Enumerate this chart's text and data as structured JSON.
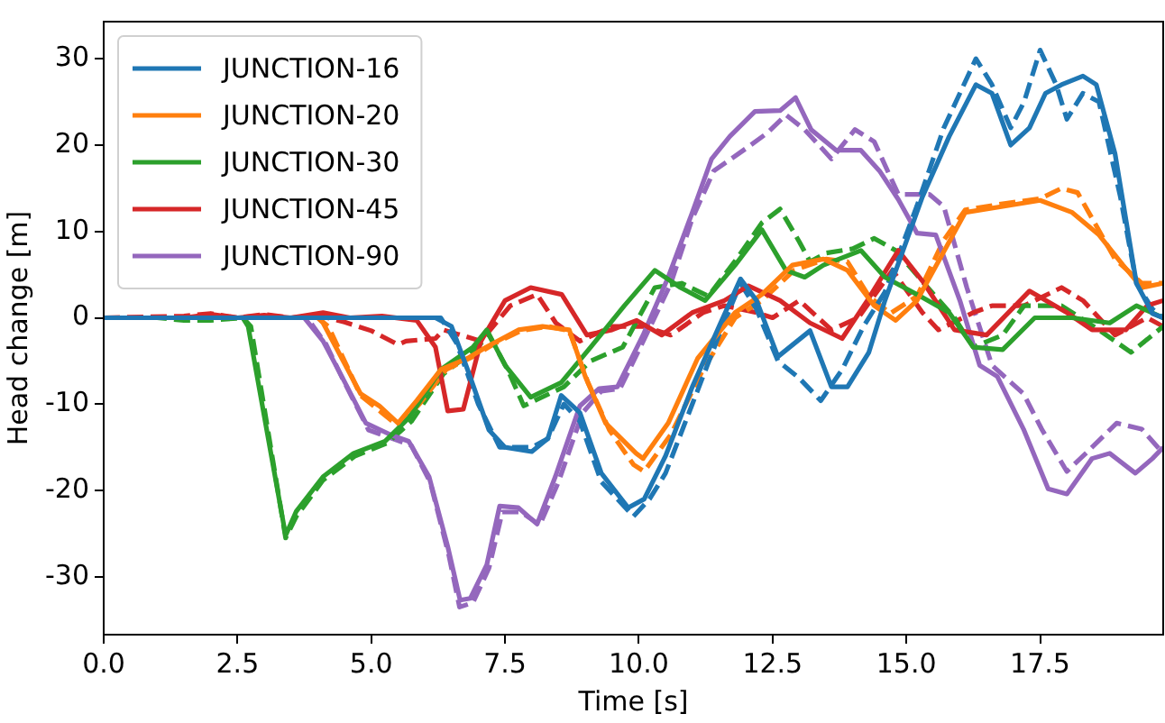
{
  "chart_data": {
    "type": "line",
    "xlabel": "Time [s]",
    "ylabel": "Head change [m]",
    "xlim": [
      0,
      19.8
    ],
    "ylim": [
      -36.7,
      34.3
    ],
    "xticks": [
      {
        "value": 0,
        "label": "0.0"
      },
      2.5,
      {
        "value": 5,
        "label": "5.0"
      },
      7.5,
      {
        "value": 10,
        "label": "10.0"
      },
      12.5,
      {
        "value": 15,
        "label": "15.0"
      },
      17.5
    ],
    "yticks": [
      -30,
      -20,
      -10,
      0,
      10,
      20,
      30
    ],
    "grid": false,
    "legend": "top left",
    "marker": "none",
    "line_style": "solid",
    "series": [
      {
        "name": "JUNCTION-16",
        "color": "#1f77b4",
        "x": [
          0,
          6.2,
          6.5,
          6.8,
          7.2,
          7.5,
          8.0,
          8.3,
          8.55,
          8.9,
          9.3,
          9.8,
          10.1,
          10.5,
          11,
          11.5,
          11.9,
          12.2,
          12.6,
          13.2,
          13.6,
          13.9,
          14.3,
          14.6,
          15.3,
          15.8,
          16.3,
          16.6,
          16.95,
          17.3,
          17.6,
          17.9,
          18.3,
          18.55,
          18.9,
          19.3,
          19.6,
          19.8
        ],
        "values": [
          0,
          0,
          -1,
          -6,
          -13,
          -15,
          -15.5,
          -14,
          -9,
          -11,
          -18,
          -22,
          -21,
          -16,
          -8,
          -1,
          4.5,
          2,
          -4.5,
          -1.5,
          -8,
          -8,
          -4,
          2,
          14,
          21,
          27,
          26,
          20,
          22,
          26,
          27,
          28,
          27,
          19,
          4,
          0.5,
          0
        ]
      },
      {
        "name": "JUNCTION-20",
        "color": "#ff7f0e",
        "x": [
          0,
          4.0,
          4.1,
          4.8,
          5.15,
          5.5,
          5.85,
          6.3,
          6.8,
          7.15,
          7.75,
          8.2,
          8.7,
          9.0,
          9.38,
          9.95,
          10.08,
          10.55,
          11.1,
          11.8,
          12.3,
          12.87,
          13.45,
          13.9,
          14.4,
          14.8,
          15.2,
          15.8,
          16.1,
          16.8,
          17.5,
          18.1,
          18.6,
          19.05,
          19.4,
          19.8
        ],
        "values": [
          0,
          0,
          -0.6,
          -8.8,
          -10.2,
          -12.2,
          -9.6,
          -6,
          -4.7,
          -3.4,
          -1.4,
          -1,
          -1.4,
          -6.8,
          -12.2,
          -15.7,
          -16.3,
          -12.2,
          -4.7,
          0.6,
          2.7,
          6.1,
          6.8,
          5.5,
          1.4,
          -0.3,
          2,
          8.8,
          12.2,
          12.9,
          13.6,
          12.2,
          9.6,
          6.1,
          3.5,
          4
        ]
      },
      {
        "name": "JUNCTION-30",
        "color": "#2ca02c",
        "x": [
          0,
          2.6,
          2.7,
          3.4,
          3.6,
          4.1,
          4.67,
          5.26,
          5.7,
          6.3,
          6.9,
          7.16,
          7.5,
          7.98,
          8.55,
          9.1,
          9.73,
          10.3,
          10.78,
          11.24,
          11.8,
          12.3,
          12.75,
          13.1,
          13.45,
          14.15,
          14.6,
          15.2,
          15.8,
          16.25,
          16.8,
          17.4,
          18.1,
          18.8,
          19.3,
          19.8
        ],
        "values": [
          0,
          0,
          -1,
          -25.2,
          -22.4,
          -18.4,
          -15.7,
          -14.3,
          -11.6,
          -6,
          -3.4,
          -1.4,
          -5.5,
          -9.2,
          -7.5,
          -3.4,
          1.4,
          5.5,
          3.5,
          2,
          6.1,
          10.2,
          5.5,
          4.7,
          6.1,
          7.8,
          4.7,
          2.7,
          0.6,
          -3.4,
          -3.7,
          0,
          0,
          -0.6,
          1.4,
          0
        ]
      },
      {
        "name": "JUNCTION-45",
        "color": "#d62728",
        "x": [
          0,
          1.5,
          2.0,
          2.5,
          3.0,
          3.5,
          4.1,
          4.6,
          5.2,
          5.85,
          6.2,
          6.43,
          6.72,
          7.05,
          7.5,
          7.98,
          8.56,
          9.03,
          9.5,
          9.96,
          10.43,
          11.0,
          11.6,
          12.05,
          12.64,
          13.2,
          13.8,
          14.27,
          14.85,
          15.32,
          15.9,
          16.5,
          17.3,
          18.0,
          18.47,
          19.1,
          19.5,
          19.8
        ],
        "values": [
          0,
          0,
          0.4,
          0,
          0.3,
          0,
          0.6,
          0,
          0.2,
          -0.3,
          -3.4,
          -10.8,
          -10.6,
          -2.7,
          2,
          3.5,
          2.7,
          -2,
          -1.4,
          -0.3,
          -2,
          0.6,
          2,
          3.7,
          2,
          -0.6,
          -2.4,
          2,
          7.8,
          4.1,
          -1.4,
          -2,
          3.1,
          0.6,
          -1.4,
          -1.4,
          1.4,
          2
        ]
      },
      {
        "name": "JUNCTION-90",
        "color": "#9467bd",
        "x": [
          0,
          3.75,
          4.1,
          4.45,
          4.9,
          5.38,
          5.7,
          6.08,
          6.43,
          6.66,
          6.85,
          7.16,
          7.4,
          7.75,
          8.1,
          8.44,
          8.9,
          9.26,
          9.6,
          10.08,
          10.55,
          11.0,
          11.36,
          11.7,
          12.17,
          12.64,
          12.93,
          13.22,
          13.69,
          14.15,
          14.5,
          14.85,
          15.2,
          15.55,
          16.0,
          16.37,
          16.7,
          17.19,
          17.65,
          18.0,
          18.47,
          18.8,
          19.28,
          19.6,
          19.8
        ],
        "values": [
          0,
          0,
          -2.7,
          -6.8,
          -12.2,
          -13.6,
          -14.3,
          -18.4,
          -26.5,
          -32.7,
          -32.5,
          -28.6,
          -21.8,
          -22,
          -23.9,
          -18.4,
          -10.2,
          -8.2,
          -8,
          -2,
          4.7,
          12.2,
          18.4,
          21,
          23.9,
          24,
          25.5,
          21.8,
          19.4,
          19.4,
          17,
          13.7,
          9.8,
          9.6,
          2,
          -5.5,
          -6.8,
          -12.9,
          -19.8,
          -20.4,
          -16.3,
          -15.7,
          -18,
          -16.3,
          -15
        ]
      },
      {
        "color": "#1f77b4",
        "line_style": "dashed",
        "x": [
          0,
          6.3,
          6.6,
          7.0,
          7.4,
          8.0,
          8.3,
          8.6,
          8.9,
          9.3,
          9.9,
          10.2,
          10.5,
          11,
          11.5,
          11.9,
          12.2,
          12.6,
          13.0,
          13.4,
          13.8,
          14.2,
          14.6,
          15.2,
          15.7,
          16.3,
          16.6,
          16.95,
          17.2,
          17.5,
          17.8,
          18.0,
          18.3,
          18.6,
          19.0,
          19.3,
          19.6,
          19.8
        ],
        "values": [
          0,
          0,
          -3,
          -10,
          -15,
          -15,
          -14,
          -10,
          -12,
          -19,
          -23,
          -21,
          -18,
          -10,
          -2,
          4,
          1,
          -5,
          -7,
          -9.6,
          -6,
          -1,
          3,
          13,
          22,
          30,
          27,
          22,
          25,
          31,
          27,
          23,
          26,
          25,
          14,
          4,
          1,
          0
        ]
      },
      {
        "color": "#ff7f0e",
        "line_style": "dashed",
        "x": [
          0,
          4.0,
          4.2,
          4.8,
          5.2,
          5.5,
          5.9,
          6.4,
          6.9,
          7.3,
          7.8,
          8.3,
          8.7,
          9.05,
          9.45,
          9.9,
          10.1,
          10.6,
          11.2,
          11.8,
          12.3,
          12.9,
          13.5,
          13.9,
          14.3,
          14.7,
          15.2,
          15.7,
          16.1,
          16.8,
          17.5,
          17.9,
          18.2,
          18.9,
          19.4,
          19.8
        ],
        "values": [
          0,
          0,
          -1,
          -9,
          -11,
          -12.5,
          -10,
          -6,
          -4.5,
          -3,
          -1.5,
          -1,
          -1.5,
          -7.5,
          -13,
          -17,
          -17.8,
          -13.5,
          -6,
          0,
          2,
          5.5,
          6.8,
          6.5,
          2.5,
          0.5,
          2.5,
          9,
          12.5,
          13.2,
          13.8,
          15,
          14.5,
          6.8,
          4,
          4
        ]
      },
      {
        "color": "#2ca02c",
        "line_style": "dashed",
        "x": [
          0,
          1.0,
          1.5,
          2.0,
          2.6,
          2.75,
          3.4,
          3.6,
          4.1,
          4.7,
          5.3,
          5.75,
          6.35,
          6.95,
          7.2,
          7.55,
          7.85,
          8.6,
          9.1,
          9.7,
          10.3,
          10.8,
          11.3,
          11.85,
          12.3,
          12.64,
          13.0,
          13.2,
          13.5,
          14.0,
          14.4,
          14.8,
          15.4,
          15.9,
          16.25,
          16.8,
          17.2,
          17.9,
          18.5,
          19.2,
          19.8
        ],
        "values": [
          0,
          0,
          -0.3,
          -0.3,
          0,
          -1,
          -25.5,
          -23,
          -18.8,
          -16,
          -14.5,
          -12,
          -6.5,
          -3.6,
          -2,
          -6,
          -10.2,
          -8,
          -5,
          -3.4,
          3.5,
          4,
          2.5,
          7,
          11,
          12.6,
          8.8,
          6.5,
          7.5,
          8,
          9.2,
          7.8,
          3.5,
          0,
          -3.4,
          -2,
          1.4,
          1.4,
          -1,
          -4,
          -1
        ]
      },
      {
        "color": "#d62728",
        "line_style": "dashed",
        "x": [
          0,
          1.5,
          2.0,
          2.5,
          3.0,
          3.5,
          4.0,
          4.5,
          5.0,
          5.5,
          5.65,
          6.2,
          6.35,
          7.05,
          7.6,
          8.1,
          8.45,
          8.9,
          9.5,
          10.1,
          10.6,
          11.2,
          11.6,
          12.2,
          12.5,
          13.0,
          13.6,
          14.1,
          14.74,
          15.3,
          15.6,
          16.25,
          16.6,
          17.2,
          17.9,
          18.3,
          18.9,
          19.5,
          19.8
        ],
        "values": [
          0,
          0.2,
          0.5,
          0,
          0.4,
          0,
          0.3,
          -0.5,
          -1.5,
          -3.1,
          -2.7,
          -2.4,
          -1.4,
          -2.7,
          1.4,
          2.7,
          -0.6,
          -2.7,
          -1,
          -1,
          -2,
          0.6,
          1.4,
          0.6,
          0,
          2,
          -1.4,
          0,
          5.5,
          0.6,
          -1.4,
          0.6,
          1.4,
          1.4,
          3.5,
          2,
          -2,
          0,
          -1
        ]
      },
      {
        "color": "#9467bd",
        "line_style": "dashed",
        "x": [
          0,
          3.8,
          4.15,
          4.5,
          4.95,
          5.4,
          5.75,
          6.1,
          6.45,
          6.65,
          6.9,
          7.2,
          7.45,
          7.8,
          8.15,
          8.5,
          8.95,
          9.3,
          9.65,
          10.1,
          10.6,
          11.0,
          11.4,
          12.0,
          12.4,
          12.75,
          13.1,
          13.6,
          14.04,
          14.4,
          14.85,
          15.43,
          15.7,
          16.13,
          16.6,
          17.19,
          17.53,
          18.0,
          18.47,
          18.93,
          19.4,
          19.8
        ],
        "values": [
          0,
          0,
          -3,
          -7.5,
          -13,
          -14,
          -14.8,
          -19,
          -27.5,
          -33.5,
          -33,
          -29,
          -22.5,
          -22.5,
          -24,
          -19,
          -11,
          -8.5,
          -8.2,
          -2.5,
          4,
          11.5,
          17,
          19.6,
          21.4,
          23.5,
          21.8,
          18.4,
          21.8,
          20.4,
          14.3,
          14.3,
          12.9,
          3.5,
          -5.5,
          -8.8,
          -12.9,
          -17.8,
          -15,
          -12.2,
          -12.9,
          -15.7
        ]
      }
    ]
  }
}
